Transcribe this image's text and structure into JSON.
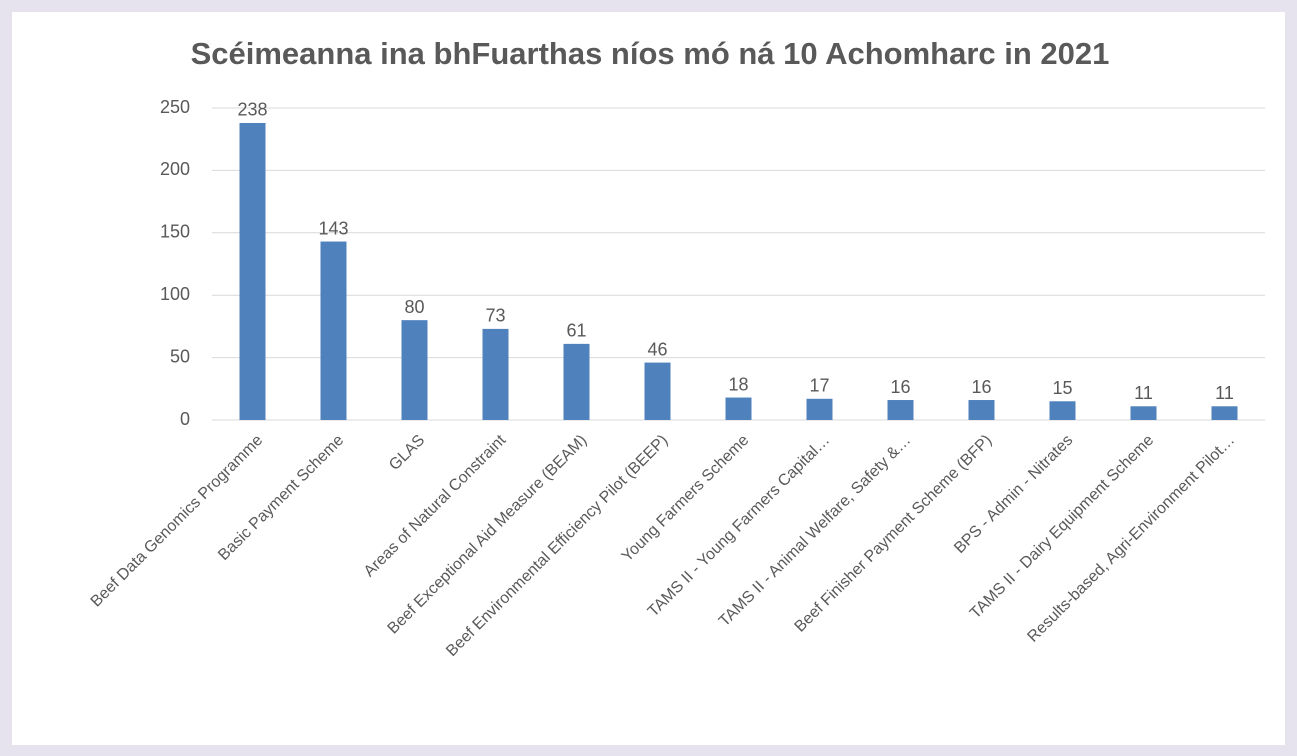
{
  "chart_data": {
    "type": "bar",
    "title": "Scéimeanna ina bhFuarthas níos mó ná 10 Achomharc in 2021",
    "categories": [
      "Beef Data Genomics Programme",
      "Basic Payment Scheme",
      "GLAS",
      "Areas of Natural Constraint",
      "Beef Exceptional Aid Measure (BEAM)",
      "Beef Environmental Efficiency Pilot (BEEP)",
      "Young Farmers Scheme",
      "TAMS II - Young Farmers Capital…",
      "TAMS II - Animal Welfare, Safety &…",
      "Beef Finisher Payment Scheme (BFP)",
      "BPS - Admin - Nitrates",
      "TAMS II - Dairy Equipment Scheme",
      "Results-based, Agri-Environment Pilot…"
    ],
    "values": [
      238,
      143,
      80,
      73,
      61,
      46,
      18,
      17,
      16,
      16,
      15,
      11,
      11
    ],
    "color": "#4f81bd",
    "ylim": [
      0,
      250
    ],
    "yticks": [
      0,
      50,
      100,
      150,
      200,
      250
    ],
    "grid": true
  }
}
